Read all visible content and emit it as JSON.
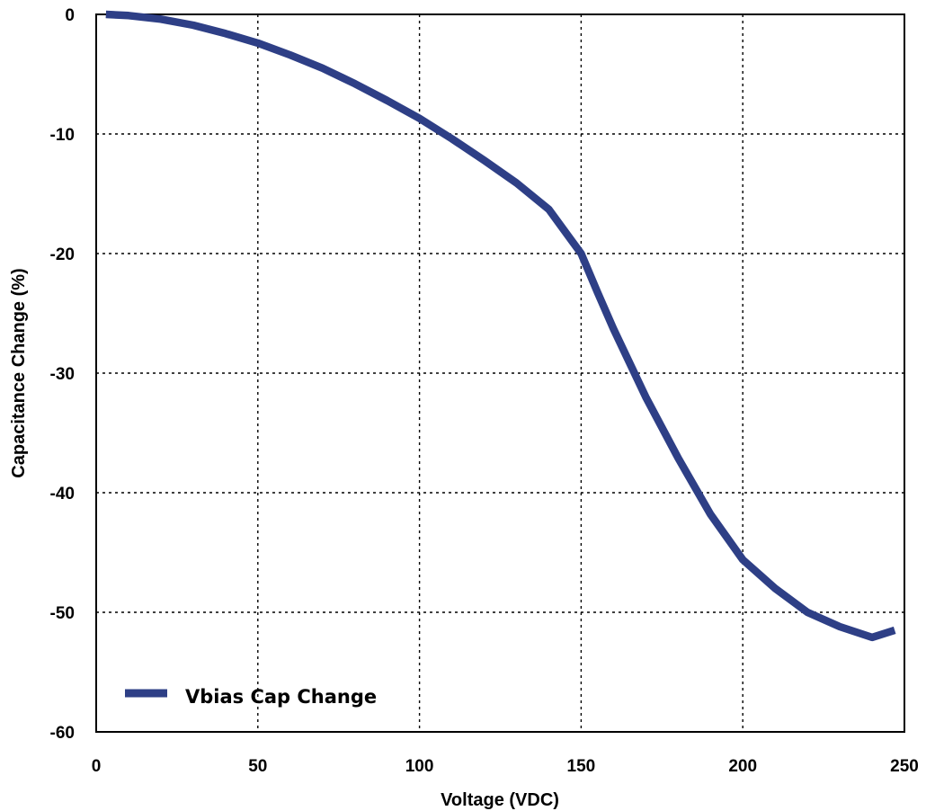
{
  "chart_data": {
    "type": "line",
    "title": "",
    "xlabel": "Voltage (VDC)",
    "ylabel": "Capacitance Change (%)",
    "xlim": [
      0,
      250
    ],
    "ylim": [
      -60,
      0
    ],
    "xticks": [
      0,
      50,
      100,
      150,
      200,
      250
    ],
    "yticks": [
      0,
      -10,
      -20,
      -30,
      -40,
      -50,
      -60
    ],
    "grid": true,
    "legend_position": "bottom-left",
    "series": [
      {
        "name": "Vbias Cap Change",
        "color": "#2e3f86",
        "x": [
          3,
          10,
          20,
          30,
          40,
          50,
          60,
          70,
          80,
          90,
          100,
          110,
          120,
          130,
          140,
          150,
          155,
          160,
          170,
          180,
          190,
          200,
          210,
          220,
          230,
          240,
          247
        ],
        "y": [
          0,
          -0.1,
          -0.4,
          -0.9,
          -1.6,
          -2.4,
          -3.4,
          -4.5,
          -5.8,
          -7.2,
          -8.7,
          -10.4,
          -12.2,
          -14.1,
          -16.3,
          -20,
          -23.2,
          -26.3,
          -32,
          -37.1,
          -41.8,
          -45.6,
          -48,
          -50,
          -51.2,
          -52.1,
          -51.5
        ]
      }
    ]
  }
}
